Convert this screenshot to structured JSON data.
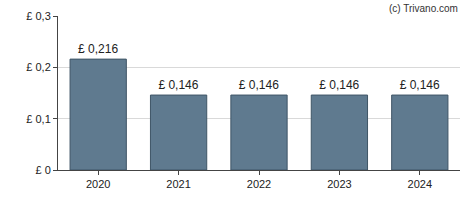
{
  "chart_data": {
    "type": "bar",
    "annotations": [
      "(c) Trivano.com"
    ],
    "categories": [
      "2020",
      "2021",
      "2022",
      "2023",
      "2024"
    ],
    "values": [
      0.216,
      0.146,
      0.146,
      0.146,
      0.146
    ],
    "value_labels": [
      "£ 0,216",
      "£ 0,146",
      "£ 0,146",
      "£ 0,146",
      "£ 0,146"
    ],
    "data_labels": true,
    "color": "#5f7a8f",
    "ylim": [
      0,
      0.3
    ],
    "yticks": [
      {
        "value": 0,
        "label": "£ 0"
      },
      {
        "value": 0.1,
        "label": "£ 0,1"
      },
      {
        "value": 0.2,
        "label": "£ 0,2"
      },
      {
        "value": 0.3,
        "label": "£ 0,3"
      }
    ],
    "grid": true
  }
}
